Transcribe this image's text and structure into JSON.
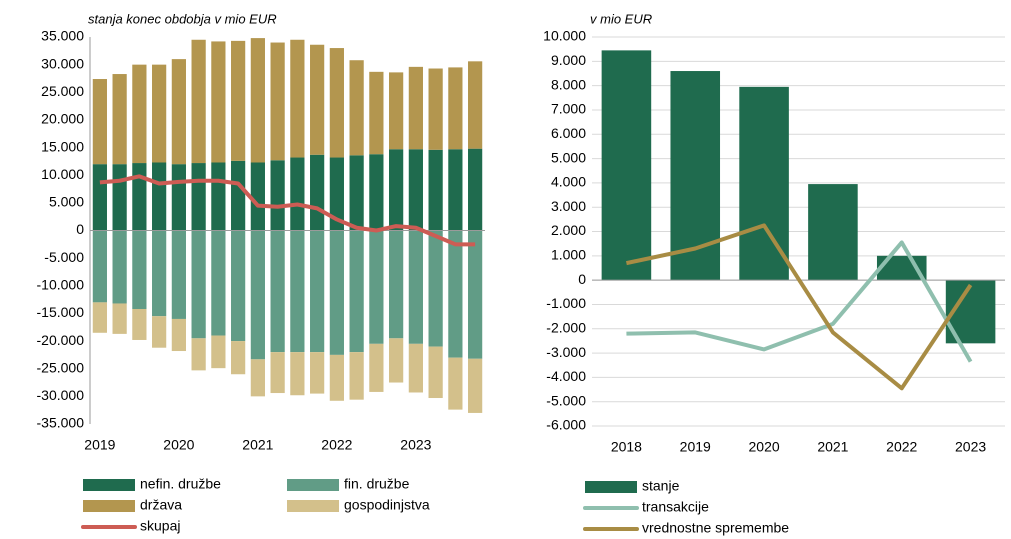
{
  "chart_data": [
    {
      "type": "stacked_bar_line",
      "title": "stanja konec obdobja v mio EUR",
      "categories": [
        "2019",
        null,
        null,
        null,
        "2020",
        null,
        null,
        null,
        "2021",
        null,
        null,
        null,
        "2022",
        null,
        null,
        null,
        "2023",
        null,
        null,
        null
      ],
      "series": [
        {
          "name": "nefin. družbe",
          "type": "bar",
          "color": "#1f6b4e",
          "values": [
            12000,
            12000,
            12200,
            12300,
            12000,
            12200,
            12300,
            12600,
            12300,
            12700,
            13200,
            13700,
            13200,
            13600,
            13800,
            14700,
            14700,
            14600,
            14700,
            14800
          ]
        },
        {
          "name": "fin. družbe",
          "type": "bar",
          "color": "#619c86",
          "values": [
            -13000,
            -13200,
            -14200,
            -15500,
            -16000,
            -19500,
            -19000,
            -20000,
            -23300,
            -22000,
            -22000,
            -22000,
            -22500,
            -22000,
            -20500,
            -19500,
            -20500,
            -21000,
            -23000,
            -23200
          ]
        },
        {
          "name": "država",
          "type": "bar",
          "color": "#b3964f",
          "values": [
            15400,
            16300,
            17800,
            17700,
            19000,
            22300,
            21900,
            21700,
            22500,
            21300,
            21300,
            19900,
            19800,
            17200,
            14900,
            13900,
            14900,
            14700,
            14800,
            15800
          ]
        },
        {
          "name": "gospodinjstva",
          "type": "bar",
          "color": "#d3c08b",
          "values": [
            -5500,
            -5500,
            -5600,
            -5700,
            -5800,
            -5800,
            -5900,
            -6000,
            -6700,
            -7400,
            -7800,
            -7500,
            -8300,
            -8600,
            -8700,
            -8000,
            -8800,
            -9300,
            -9400,
            -9800
          ]
        },
        {
          "name": "skupaj",
          "type": "line",
          "color": "#cd5c54",
          "values": [
            8700,
            9000,
            9800,
            8500,
            8800,
            9000,
            9000,
            8500,
            4500,
            4300,
            4700,
            4000,
            2000,
            500,
            0,
            800,
            500,
            -1000,
            -2500,
            -2500
          ]
        }
      ],
      "ylim": [
        -35000,
        35000
      ],
      "yticks": [
        {
          "value": 35000,
          "label": "35.000"
        },
        {
          "value": 30000,
          "label": "30.000"
        },
        {
          "value": 25000,
          "label": "25.000"
        },
        {
          "value": 20000,
          "label": "20.000"
        },
        {
          "value": 15000,
          "label": "15.000"
        },
        {
          "value": 10000,
          "label": "10.000"
        },
        {
          "value": 5000,
          "label": "5.000"
        },
        0,
        {
          "value": -5000,
          "label": "-5.000"
        },
        {
          "value": -10000,
          "label": "-10.000"
        },
        {
          "value": -15000,
          "label": "-15.000"
        },
        {
          "value": -20000,
          "label": "-20.000"
        },
        {
          "value": -25000,
          "label": "-25.000"
        },
        {
          "value": -30000,
          "label": "-30.000"
        },
        {
          "value": -35000,
          "label": "-35.000"
        }
      ],
      "grid": false
    },
    {
      "type": "bar_line",
      "title": "v mio EUR",
      "categories": [
        "2018",
        "2019",
        "2020",
        "2021",
        "2022",
        "2023"
      ],
      "series": [
        {
          "name": "stanje",
          "type": "bar",
          "color": "#1f6b4e",
          "values": [
            9450,
            8600,
            7950,
            3950,
            1000,
            -2600
          ]
        },
        {
          "name": "transakcije",
          "type": "line",
          "color": "#8fbfae",
          "values": [
            -2200,
            -2150,
            -2850,
            -1800,
            1550,
            -3350
          ]
        },
        {
          "name": "vrednostne spremembe",
          "type": "line",
          "color": "#a88c44",
          "values": [
            700,
            1300,
            2250,
            -2150,
            -4450,
            -200
          ]
        }
      ],
      "ylim": [
        -6000,
        10000
      ],
      "yticks": [
        {
          "value": 10000,
          "label": "10.000"
        },
        {
          "value": 9000,
          "label": "9.000"
        },
        {
          "value": 8000,
          "label": "8.000"
        },
        {
          "value": 7000,
          "label": "7.000"
        },
        {
          "value": 6000,
          "label": "6.000"
        },
        {
          "value": 5000,
          "label": "5.000"
        },
        {
          "value": 4000,
          "label": "4.000"
        },
        {
          "value": 3000,
          "label": "3.000"
        },
        {
          "value": 2000,
          "label": "2.000"
        },
        {
          "value": 1000,
          "label": "1.000"
        },
        0,
        {
          "value": -1000,
          "label": "-1.000"
        },
        {
          "value": -2000,
          "label": "-2.000"
        },
        {
          "value": -3000,
          "label": "-3.000"
        },
        {
          "value": -4000,
          "label": "-4.000"
        },
        {
          "value": -5000,
          "label": "-5.000"
        },
        {
          "value": -6000,
          "label": "-6.000"
        }
      ],
      "grid": true
    }
  ]
}
